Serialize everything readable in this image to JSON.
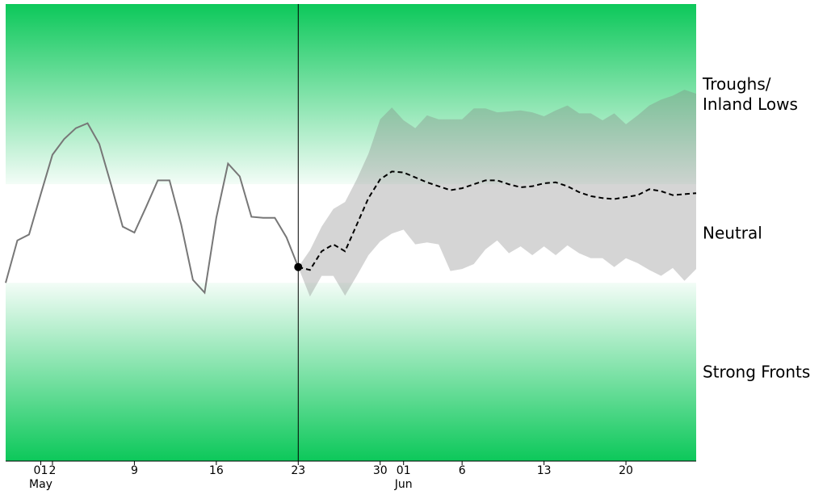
{
  "chart_data": {
    "type": "line",
    "x": [
      "04-28",
      "04-29",
      "04-30",
      "05-01",
      "05-02",
      "05-03",
      "05-04",
      "05-05",
      "05-06",
      "05-07",
      "05-08",
      "05-09",
      "05-10",
      "05-11",
      "05-12",
      "05-13",
      "05-14",
      "05-15",
      "05-16",
      "05-17",
      "05-18",
      "05-19",
      "05-20",
      "05-21",
      "05-22",
      "05-23",
      "05-24",
      "05-25",
      "05-26",
      "05-27",
      "05-28",
      "05-29",
      "05-30",
      "05-31",
      "06-01",
      "06-02",
      "06-03",
      "06-04",
      "06-05",
      "06-06",
      "06-07",
      "06-08",
      "06-09",
      "06-10",
      "06-11",
      "06-12",
      "06-13",
      "06-14",
      "06-15",
      "06-16",
      "06-17",
      "06-18",
      "06-19",
      "06-20",
      "06-21",
      "06-22",
      "06-23",
      "06-24",
      "06-25",
      "06-26"
    ],
    "xlim": [
      "04-28",
      "06-26"
    ],
    "xticks": [
      {
        "value": "05-01",
        "label": "01"
      },
      {
        "value": "05-02",
        "label": "2"
      },
      {
        "value": "05-09",
        "label": "9"
      },
      {
        "value": "05-16",
        "label": "16"
      },
      {
        "value": "05-23",
        "label": "23"
      },
      {
        "value": "05-30",
        "label": "30"
      },
      {
        "value": "06-01",
        "label": "01"
      },
      {
        "value": "06-06",
        "label": "6"
      },
      {
        "value": "06-13",
        "label": "13"
      },
      {
        "value": "06-20",
        "label": "20"
      }
    ],
    "month_labels": [
      {
        "value": "05-01",
        "label": "May"
      },
      {
        "value": "06-01",
        "label": "Jun"
      }
    ],
    "today": "05-23",
    "today_color": "#ff0000",
    "ylim": [
      -2.31,
      2.33
    ],
    "regions": [
      {
        "label": "Troughs/\nInland Lows",
        "from": 0.5,
        "to": 2.33,
        "fade": "down"
      },
      {
        "label": "Neutral",
        "from": -0.5,
        "to": 0.5,
        "fade": null
      },
      {
        "label": "Strong Fronts",
        "from": -2.31,
        "to": -0.5,
        "fade": "up"
      }
    ],
    "region_color": "#0cc85a",
    "series": [
      {
        "name": "observed",
        "color": "#777777",
        "dashed": false,
        "values": [
          -0.5,
          -0.07,
          -0.01,
          0.4,
          0.8,
          0.96,
          1.07,
          1.12,
          0.91,
          0.5,
          0.07,
          0.01,
          0.27,
          0.54,
          0.54,
          0.09,
          -0.47,
          -0.6,
          0.16,
          0.71,
          0.58,
          0.17,
          0.16,
          0.16,
          -0.04,
          -0.34,
          null,
          null,
          null,
          null,
          null,
          null,
          null,
          null,
          null,
          null,
          null,
          null,
          null,
          null,
          null,
          null,
          null,
          null,
          null,
          null,
          null,
          null,
          null,
          null,
          null,
          null,
          null,
          null,
          null,
          null,
          null,
          null,
          null,
          null
        ]
      },
      {
        "name": "forecast",
        "color": "#000000",
        "dashed": true,
        "values": [
          null,
          null,
          null,
          null,
          null,
          null,
          null,
          null,
          null,
          null,
          null,
          null,
          null,
          null,
          null,
          null,
          null,
          null,
          null,
          null,
          null,
          null,
          null,
          null,
          null,
          -0.34,
          -0.37,
          -0.18,
          -0.11,
          -0.18,
          0.09,
          0.36,
          0.55,
          0.63,
          0.62,
          0.57,
          0.52,
          0.48,
          0.44,
          0.46,
          0.5,
          0.54,
          0.54,
          0.5,
          0.47,
          0.48,
          0.51,
          0.52,
          0.48,
          0.42,
          0.38,
          0.36,
          0.35,
          0.37,
          0.39,
          0.45,
          0.43,
          0.39,
          0.4,
          0.41
        ]
      }
    ],
    "band": {
      "color": "#808080",
      "upper": [
        null,
        null,
        null,
        null,
        null,
        null,
        null,
        null,
        null,
        null,
        null,
        null,
        null,
        null,
        null,
        null,
        null,
        null,
        null,
        null,
        null,
        null,
        null,
        null,
        null,
        -0.34,
        -0.17,
        0.07,
        0.25,
        0.32,
        0.55,
        0.81,
        1.16,
        1.28,
        1.15,
        1.07,
        1.2,
        1.16,
        1.16,
        1.16,
        1.27,
        1.27,
        1.23,
        1.24,
        1.25,
        1.23,
        1.19,
        1.25,
        1.3,
        1.22,
        1.22,
        1.15,
        1.22,
        1.11,
        1.2,
        1.3,
        1.36,
        1.4,
        1.46,
        1.42
      ],
      "lower": [
        null,
        null,
        null,
        null,
        null,
        null,
        null,
        null,
        null,
        null,
        null,
        null,
        null,
        null,
        null,
        null,
        null,
        null,
        null,
        null,
        null,
        null,
        null,
        null,
        null,
        -0.34,
        -0.64,
        -0.43,
        -0.43,
        -0.63,
        -0.43,
        -0.22,
        -0.08,
        0,
        0.04,
        -0.11,
        -0.09,
        -0.11,
        -0.38,
        -0.36,
        -0.31,
        -0.16,
        -0.07,
        -0.2,
        -0.13,
        -0.22,
        -0.13,
        -0.22,
        -0.12,
        -0.2,
        -0.25,
        -0.25,
        -0.34,
        -0.25,
        -0.3,
        -0.37,
        -0.43,
        -0.35,
        -0.48,
        -0.36
      ]
    }
  }
}
